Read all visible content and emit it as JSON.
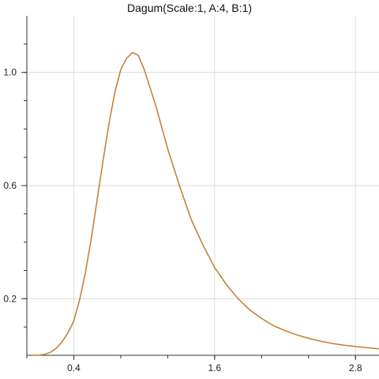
{
  "chart_data": {
    "type": "line",
    "title": "Dagum(Scale:1, A:4, B:1)",
    "xlabel": "",
    "ylabel": "",
    "xlim": [
      0.0,
      3.0
    ],
    "ylim": [
      0.0,
      1.2
    ],
    "x_ticks": [
      {
        "value": 0.4,
        "label": "0.4"
      },
      {
        "value": 1.6,
        "label": "1.6"
      },
      {
        "value": 2.8,
        "label": "2.8"
      }
    ],
    "x_minor_ticks": [
      0.0,
      0.4,
      0.8,
      1.2,
      1.6,
      2.0,
      2.4,
      2.8
    ],
    "y_ticks": [
      {
        "value": 0.2,
        "label": "0.2"
      },
      {
        "value": 0.6,
        "label": "0.6"
      },
      {
        "value": 1.0,
        "label": "1.0"
      }
    ],
    "y_minor_ticks": [
      0.1,
      0.2,
      0.3,
      0.4,
      0.5,
      0.6,
      0.7,
      0.8,
      0.9,
      1.0,
      1.1
    ],
    "grid": true,
    "colors": {
      "series": "#c77a2a",
      "grid": "#dddddd",
      "axis": "#333333"
    },
    "series": [
      {
        "x": [
          0.05,
          0.1,
          0.15,
          0.2,
          0.25,
          0.3,
          0.35,
          0.4,
          0.45,
          0.5,
          0.55,
          0.6,
          0.65,
          0.7,
          0.75,
          0.8,
          0.85,
          0.9,
          0.95,
          1.0,
          1.1,
          1.2,
          1.3,
          1.4,
          1.5,
          1.6,
          1.7,
          1.8,
          1.9,
          2.0,
          2.1,
          2.2,
          2.3,
          2.4,
          2.5,
          2.6,
          2.7,
          2.8,
          2.9,
          3.0
        ],
        "y": [
          0.0002,
          0.0004,
          0.0032,
          0.0106,
          0.0248,
          0.0474,
          0.0796,
          0.1212,
          0.1964,
          0.295,
          0.415,
          0.553,
          0.69,
          0.82,
          0.93,
          1.01,
          1.05,
          1.07,
          1.06,
          1.01,
          0.88,
          0.73,
          0.6,
          0.48,
          0.39,
          0.31,
          0.25,
          0.2,
          0.16,
          0.13,
          0.105,
          0.087,
          0.072,
          0.06,
          0.05,
          0.042,
          0.036,
          0.031,
          0.027,
          0.023
        ]
      }
    ]
  }
}
